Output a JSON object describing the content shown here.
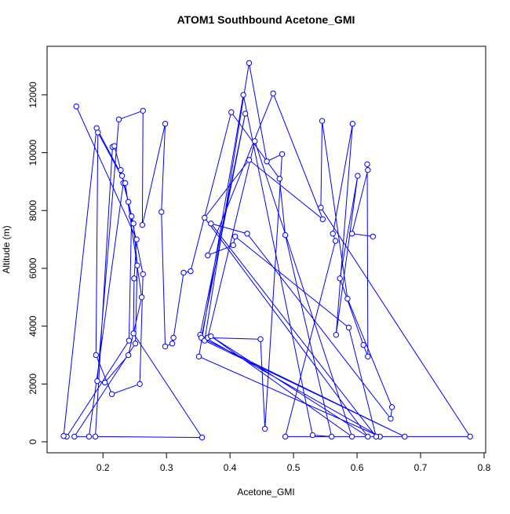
{
  "chart_data": {
    "type": "line",
    "title": "ATOM1 Southbound Acetone_GMI",
    "xlabel": "Acetone_GMI",
    "ylabel": "Altitude (m)",
    "color": "#0000ff",
    "markers": true,
    "xlim": [
      0.112,
      0.8025
    ],
    "ylim": [
      -380,
      13680
    ],
    "xticks": [
      0.2,
      0.3,
      0.4,
      0.5,
      0.6,
      0.7,
      0.8
    ],
    "yticks": [
      0,
      2000,
      4000,
      6000,
      8000,
      10000,
      12000
    ],
    "x": [
      0.158,
      0.253,
      0.249,
      0.248,
      0.356,
      0.188,
      0.215,
      0.218,
      0.228,
      0.245,
      0.241,
      0.143,
      0.138,
      0.19,
      0.23,
      0.248,
      0.254,
      0.251,
      0.155,
      0.178,
      0.232,
      0.24,
      0.263,
      0.258,
      0.214,
      0.189,
      0.192,
      0.235,
      0.261,
      0.24,
      0.203,
      0.191,
      0.225,
      0.263,
      0.262,
      0.298,
      0.292,
      0.298,
      0.309,
      0.311,
      0.327,
      0.338,
      0.402,
      0.478,
      0.487,
      0.56,
      0.53,
      0.421,
      0.351,
      0.636,
      0.353,
      0.424,
      0.355,
      0.675,
      0.36,
      0.43,
      0.458,
      0.482,
      0.455,
      0.448,
      0.365,
      0.439,
      0.592,
      0.37,
      0.617,
      0.36,
      0.43,
      0.546,
      0.468,
      0.365,
      0.405,
      0.408,
      0.587,
      0.63,
      0.37,
      0.427,
      0.653,
      0.655,
      0.585,
      0.545,
      0.543,
      0.778,
      0.487,
      0.566,
      0.562,
      0.593,
      0.567,
      0.601,
      0.573,
      0.61,
      0.617,
      0.616,
      0.617,
      0.592,
      0.625
    ],
    "values": [
      11600,
      7000,
      5650,
      3750,
      150,
      180,
      10200,
      10230,
      9400,
      7800,
      3500,
      180,
      200,
      10850,
      9200,
      7550,
      6100,
      3400,
      180,
      180,
      8950,
      8300,
      5800,
      2000,
      1650,
      3000,
      10700,
      8950,
      5000,
      3000,
      2050,
      2100,
      11150,
      11450,
      7500,
      11000,
      7950,
      3300,
      3400,
      3600,
      5850,
      5900,
      11400,
      9100,
      7150,
      180,
      230,
      12000,
      2950,
      180,
      3700,
      11350,
      3600,
      180,
      3500,
      13100,
      9700,
      9950,
      450,
      3550,
      3600,
      10400,
      180,
      3650,
      180,
      7750,
      9750,
      7700,
      12050,
      6450,
      6800,
      7100,
      3950,
      180,
      7550,
      7200,
      800,
      1200,
      4950,
      11100,
      8100,
      180,
      180,
      6950,
      7200,
      11000,
      3700,
      9200,
      5650,
      3350,
      2950,
      9600,
      9400,
      7200,
      7100
    ]
  }
}
